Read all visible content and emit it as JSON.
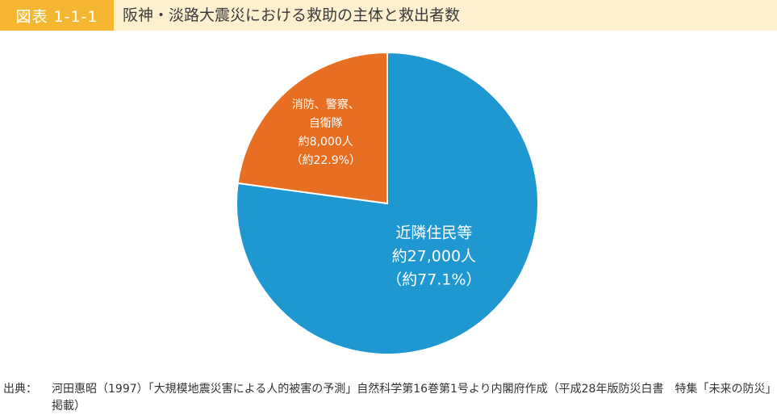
{
  "header": {
    "figure_label": "図表 1-1-1",
    "title": "阪神・淡路大震災における救助の主体と救出者数"
  },
  "chart_data": {
    "type": "pie",
    "title": "阪神・淡路大震災における救助の主体と救出者数",
    "slices": [
      {
        "name": "近隣住民等",
        "label_lines": [
          "近隣住民等",
          "約27,000人",
          "（約77.1%）"
        ],
        "value": 27000,
        "percent": 77.1,
        "color": "#1f98d1"
      },
      {
        "name": "消防、警察、自衛隊",
        "label_lines": [
          "消防、警察、",
          "自衛隊",
          "約8,000人",
          "（約22.9%）"
        ],
        "value": 8000,
        "percent": 22.9,
        "color": "#e86f22"
      }
    ]
  },
  "footer": {
    "source_label": "出典：",
    "source_text": "河田惠昭（1997）「大規模地震災害による人的被害の予測」自然科学第16巻第1号より内閣府作成（平成28年版防災白書　特集「未来の防災」掲載）"
  }
}
